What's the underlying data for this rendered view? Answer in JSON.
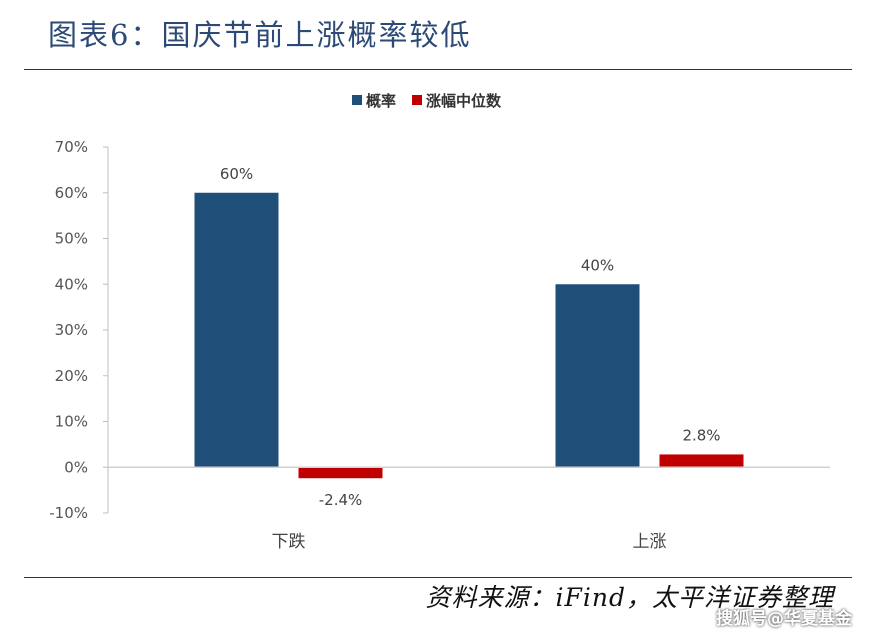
{
  "header": {
    "title": "图表6：国庆节前上涨概率较低"
  },
  "footer": {
    "source": "资料来源：iFind，太平洋证券整理",
    "watermark": "搜狐号@华夏基金"
  },
  "chart_data": {
    "type": "bar",
    "categories": [
      "下跌",
      "上涨"
    ],
    "series": [
      {
        "name": "概率",
        "values": [
          60,
          40
        ],
        "labels": [
          "60%",
          "40%"
        ],
        "color": "#1f4e79"
      },
      {
        "name": "涨幅中位数",
        "values": [
          -2.4,
          2.8
        ],
        "labels": [
          "-2.4%",
          "2.8%"
        ],
        "color": "#c00000"
      }
    ],
    "ylim": [
      -10,
      70
    ],
    "yticks": [
      -10,
      0,
      10,
      20,
      30,
      40,
      50,
      60,
      70
    ],
    "ytick_labels": [
      "-10%",
      "0%",
      "10%",
      "20%",
      "30%",
      "40%",
      "50%",
      "60%",
      "70%"
    ],
    "legend_position": "top-center",
    "grid": false
  }
}
